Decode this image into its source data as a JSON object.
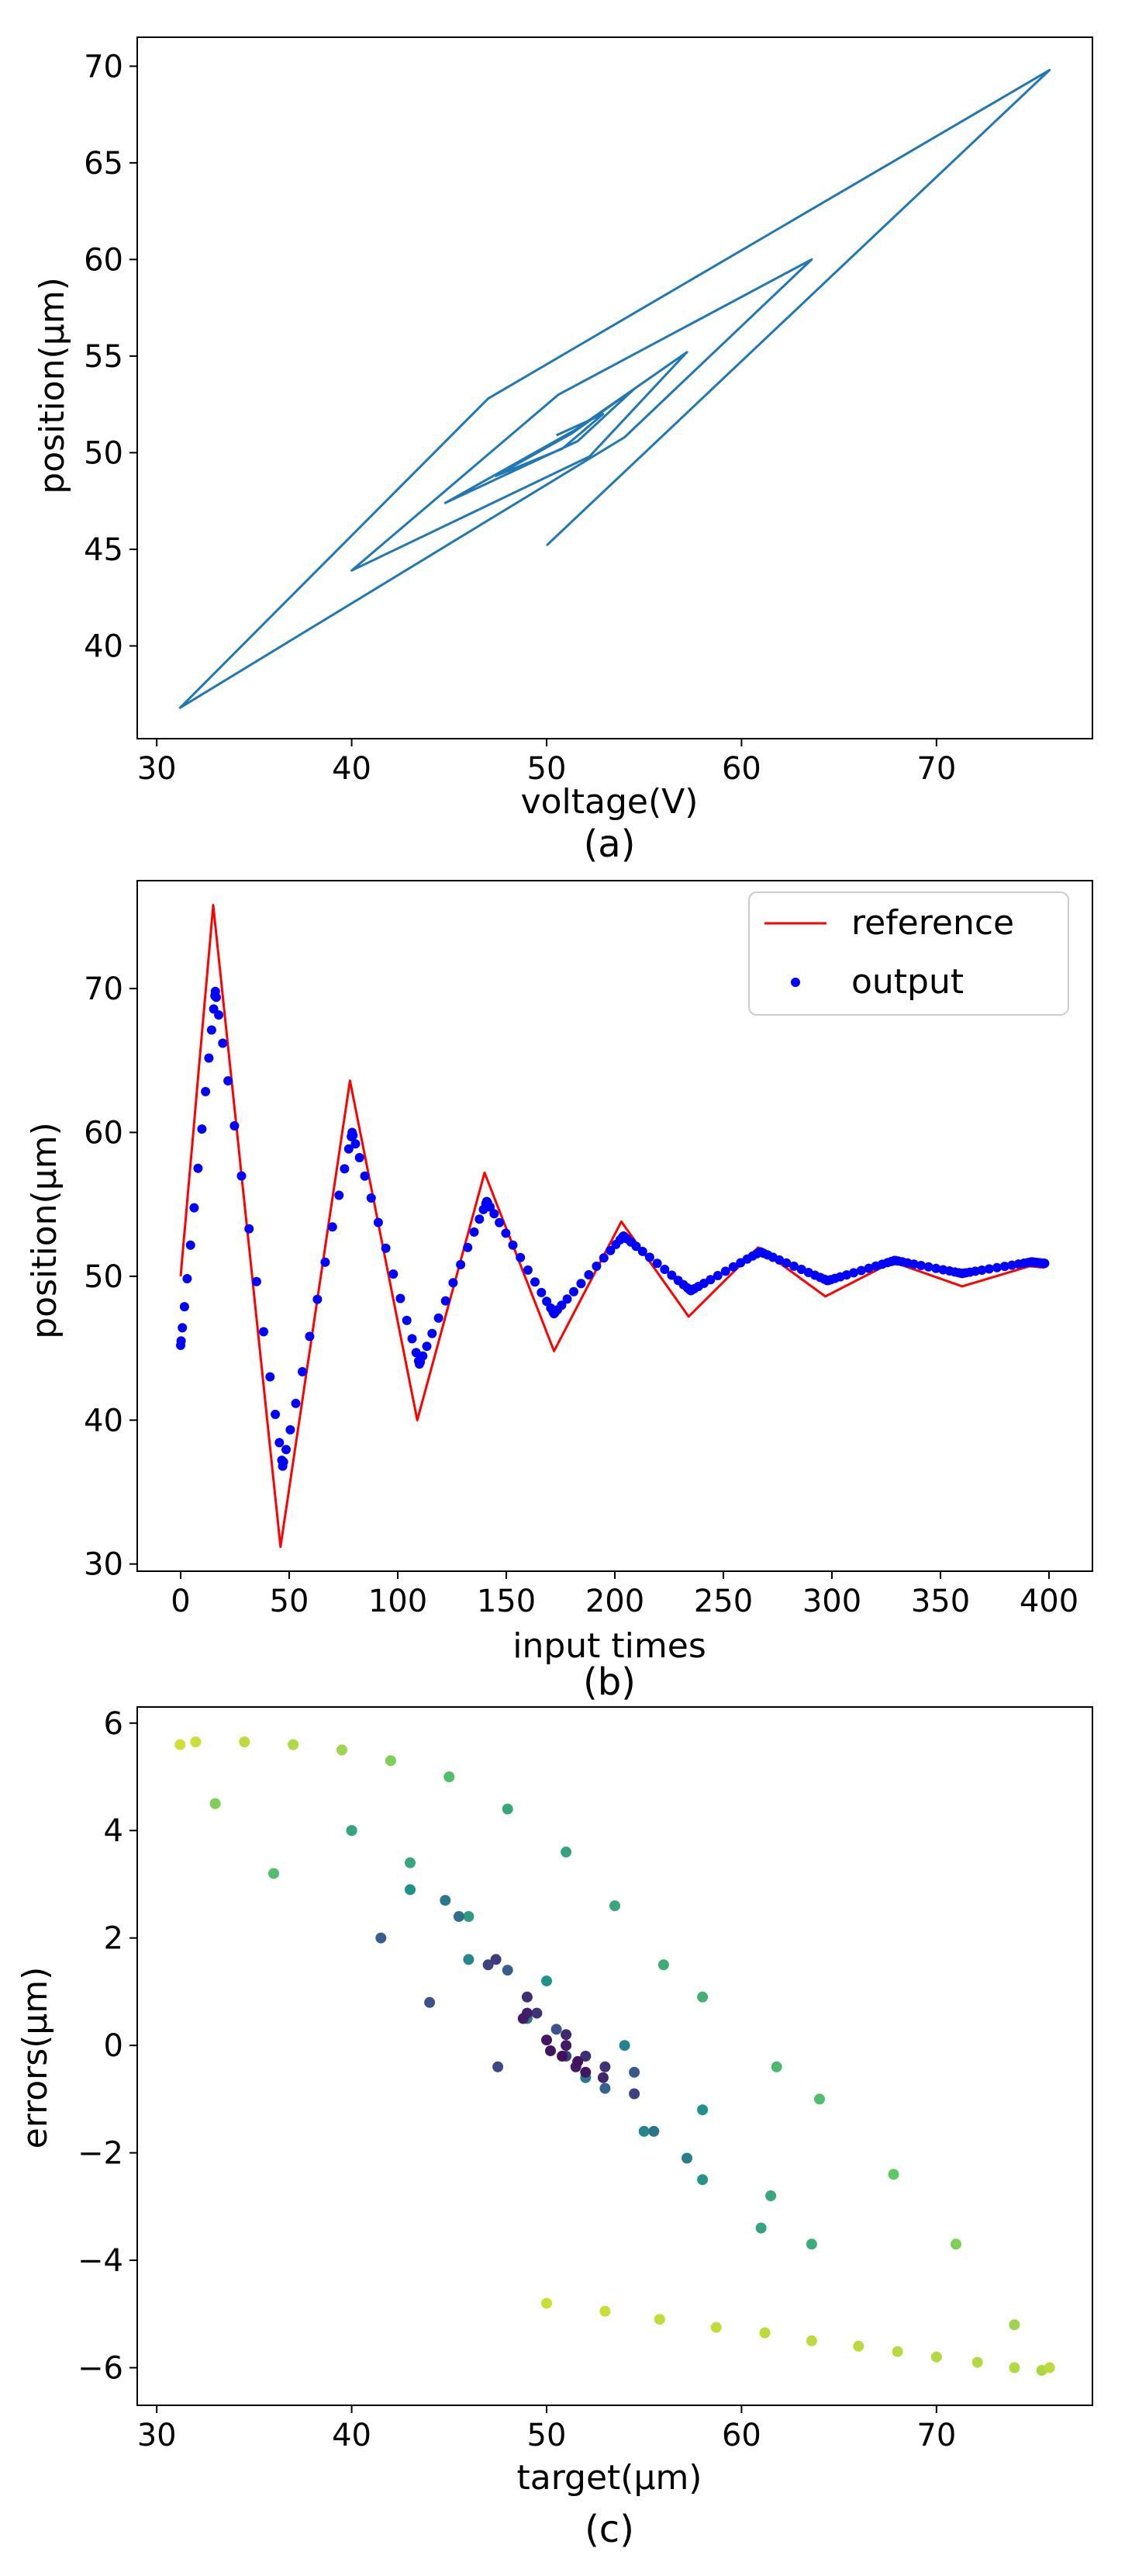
{
  "chart_data": [
    {
      "type": "line",
      "panel_label": "(a)",
      "xlabel": "voltage(V)",
      "ylabel": "position(μm)",
      "xlim": [
        29,
        78
      ],
      "ylim": [
        35.2,
        71.5
      ],
      "xticks": [
        30,
        40,
        50,
        60,
        70
      ],
      "yticks": [
        40,
        45,
        50,
        55,
        60,
        65,
        70
      ],
      "grid": false,
      "series": [
        {
          "color": "#1f77b4",
          "x": [
            50.0,
            75.8,
            47.0,
            31.2,
            54.0,
            63.6,
            50.6,
            40.0,
            52.2,
            57.2,
            51.5,
            44.8,
            51.6,
            54.5,
            51.3,
            47.4,
            50.8,
            52.9,
            50.5
          ],
          "y": [
            45.2,
            69.8,
            52.8,
            36.8,
            50.8,
            60.0,
            53.0,
            43.9,
            49.8,
            55.2,
            51.2,
            47.4,
            50.6,
            53.3,
            51.0,
            48.8,
            50.2,
            52.0,
            50.9
          ]
        }
      ]
    },
    {
      "type": "line",
      "panel_label": "(b)",
      "xlabel": "input times",
      "ylabel": "position(μm)",
      "xlim": [
        -20,
        420
      ],
      "ylim": [
        29.5,
        77.5
      ],
      "xticks": [
        0,
        50,
        100,
        150,
        200,
        250,
        300,
        350,
        400
      ],
      "yticks": [
        30,
        40,
        50,
        60,
        70
      ],
      "grid": false,
      "legend": "top-right",
      "series": [
        {
          "name": "reference",
          "kind": "line",
          "color": "#ff0000",
          "x": [
            0,
            15,
            46,
            78,
            109,
            140,
            172,
            203,
            234,
            266,
            297,
            328,
            360,
            391,
            398
          ],
          "y": [
            50.0,
            75.8,
            31.2,
            63.6,
            40.0,
            57.2,
            44.8,
            53.8,
            47.2,
            52.0,
            48.6,
            51.0,
            49.3,
            50.7,
            50.6
          ]
        },
        {
          "name": "output",
          "kind": "scatter",
          "color": "#0000ff",
          "x": [
            0,
            16,
            47,
            79,
            110,
            141,
            172,
            204,
            235,
            267,
            298,
            329,
            360,
            392,
            398
          ],
          "y": [
            45.2,
            69.8,
            36.8,
            60.0,
            43.9,
            55.2,
            47.4,
            52.8,
            49.0,
            51.7,
            49.7,
            51.1,
            50.2,
            51.0,
            50.9
          ]
        }
      ]
    },
    {
      "type": "scatter",
      "panel_label": "(c)",
      "xlabel": "target(μm)",
      "ylabel": "errors(μm)",
      "xlim": [
        29,
        78
      ],
      "ylim": [
        -6.7,
        6.3
      ],
      "xticks": [
        30,
        40,
        50,
        60,
        70
      ],
      "yticks": [
        -6,
        -4,
        -2,
        0,
        2,
        4,
        6
      ],
      "grid": false,
      "colormap": "viridis",
      "series": [
        {
          "x": [
            50.0,
            53.0,
            55.8,
            58.7,
            61.2,
            63.6,
            66.0,
            68.0,
            70.0,
            72.1,
            74.0,
            75.4,
            75.8,
            74.0,
            71.0,
            67.8,
            64.0,
            61.8,
            58.0,
            56.0,
            53.5,
            51.0,
            48.0,
            45.0,
            42.0,
            39.5,
            37.0,
            34.5,
            32.0,
            31.2,
            33.0,
            36.0,
            40.0,
            43.0,
            46.0,
            50.0,
            54.0,
            58.0,
            61.5,
            63.6,
            61.0,
            58.0,
            55.0,
            52.0,
            49.0,
            46.0,
            43.0,
            40.0,
            41.5,
            44.0,
            47.5,
            51.0,
            54.5,
            57.2,
            55.5,
            53.0,
            50.5,
            48.0,
            45.5,
            44.8,
            47.0,
            49.5,
            52.0,
            54.5,
            53.0,
            51.0,
            49.0,
            47.4,
            49.0,
            51.0,
            52.9,
            51.5,
            50.0,
            48.8,
            50.2,
            51.6,
            52.0,
            50.8
          ],
          "y": [
            -4.8,
            -4.95,
            -5.1,
            -5.25,
            -5.35,
            -5.5,
            -5.6,
            -5.7,
            -5.8,
            -5.9,
            -6.0,
            -6.05,
            -6.0,
            -5.2,
            -3.7,
            -2.4,
            -1.0,
            -0.4,
            0.9,
            1.5,
            2.6,
            3.6,
            4.4,
            5.0,
            5.3,
            5.5,
            5.6,
            5.65,
            5.65,
            5.6,
            4.5,
            3.2,
            4.0,
            3.4,
            2.4,
            1.2,
            0.0,
            -1.2,
            -2.8,
            -3.7,
            -3.4,
            -2.5,
            -1.6,
            -0.6,
            0.5,
            1.6,
            2.9,
            4.0,
            2.0,
            0.8,
            -0.4,
            -0.2,
            -0.5,
            -2.1,
            -1.6,
            -0.8,
            0.3,
            1.4,
            2.4,
            2.7,
            1.5,
            0.6,
            -0.2,
            -0.9,
            -0.4,
            0.2,
            0.9,
            1.6,
            0.6,
            0.0,
            -0.6,
            -0.4,
            0.1,
            0.5,
            -0.1,
            -0.3,
            -0.5,
            -0.2
          ],
          "c": [
            0.92,
            0.92,
            0.91,
            0.91,
            0.9,
            0.9,
            0.89,
            0.89,
            0.88,
            0.88,
            0.88,
            0.87,
            0.9,
            0.85,
            0.8,
            0.75,
            0.7,
            0.68,
            0.64,
            0.62,
            0.6,
            0.58,
            0.6,
            0.7,
            0.8,
            0.85,
            0.88,
            0.9,
            0.92,
            0.93,
            0.8,
            0.7,
            0.62,
            0.6,
            0.55,
            0.5,
            0.45,
            0.5,
            0.6,
            0.62,
            0.58,
            0.52,
            0.46,
            0.4,
            0.42,
            0.46,
            0.5,
            0.58,
            0.3,
            0.25,
            0.22,
            0.2,
            0.28,
            0.42,
            0.38,
            0.32,
            0.26,
            0.3,
            0.36,
            0.4,
            0.2,
            0.16,
            0.14,
            0.2,
            0.15,
            0.12,
            0.14,
            0.18,
            0.1,
            0.08,
            0.12,
            0.08,
            0.06,
            0.08,
            0.05,
            0.05,
            0.06,
            0.04
          ]
        }
      ]
    }
  ]
}
